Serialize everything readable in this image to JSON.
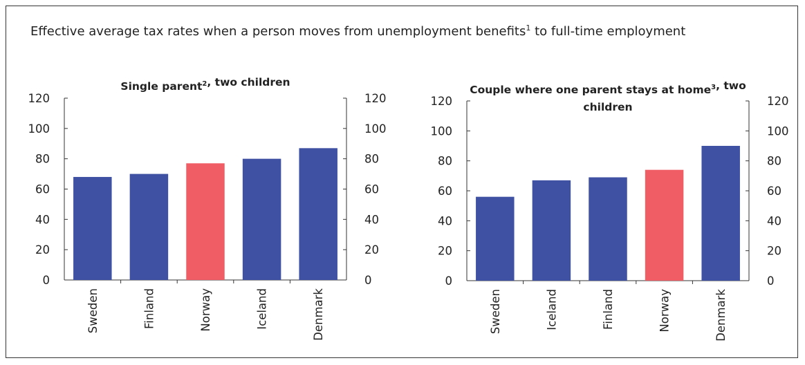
{
  "title": {
    "before": "Effective average tax rates when a person moves from unemployment benefits",
    "sup": "1",
    "after": " to full-time employment"
  },
  "colors": {
    "default_bar": "#3f51a3",
    "highlight_bar": "#f15d64",
    "axis": "#333333"
  },
  "chart_data": [
    {
      "type": "bar",
      "title_parts": [
        {
          "text": "Single parent"
        },
        {
          "text": "2",
          "sup": true
        },
        {
          "text": ", two children"
        }
      ],
      "categories": [
        "Sweden",
        "Finland",
        "Norway",
        "Iceland",
        "Denmark"
      ],
      "values": [
        68,
        70,
        77,
        80,
        87
      ],
      "highlight": "Norway",
      "ylim": [
        0,
        120
      ],
      "yticks": [
        0,
        20,
        40,
        60,
        80,
        100,
        120
      ],
      "y_axis_both_sides": true,
      "grid": false
    },
    {
      "type": "bar",
      "title_lines": [
        [
          {
            "text": "Couple where one parent stays at home"
          },
          {
            "text": "3",
            "sup": true
          },
          {
            "text": ", two"
          }
        ],
        [
          {
            "text": "children"
          }
        ]
      ],
      "categories": [
        "Sweden",
        "Iceland",
        "Finland",
        "Norway",
        "Denmark"
      ],
      "values": [
        56,
        67,
        69,
        74,
        90
      ],
      "highlight": "Norway",
      "ylim": [
        0,
        120
      ],
      "yticks": [
        0,
        20,
        40,
        60,
        80,
        100,
        120
      ],
      "y_axis_both_sides": true,
      "grid": false
    }
  ]
}
